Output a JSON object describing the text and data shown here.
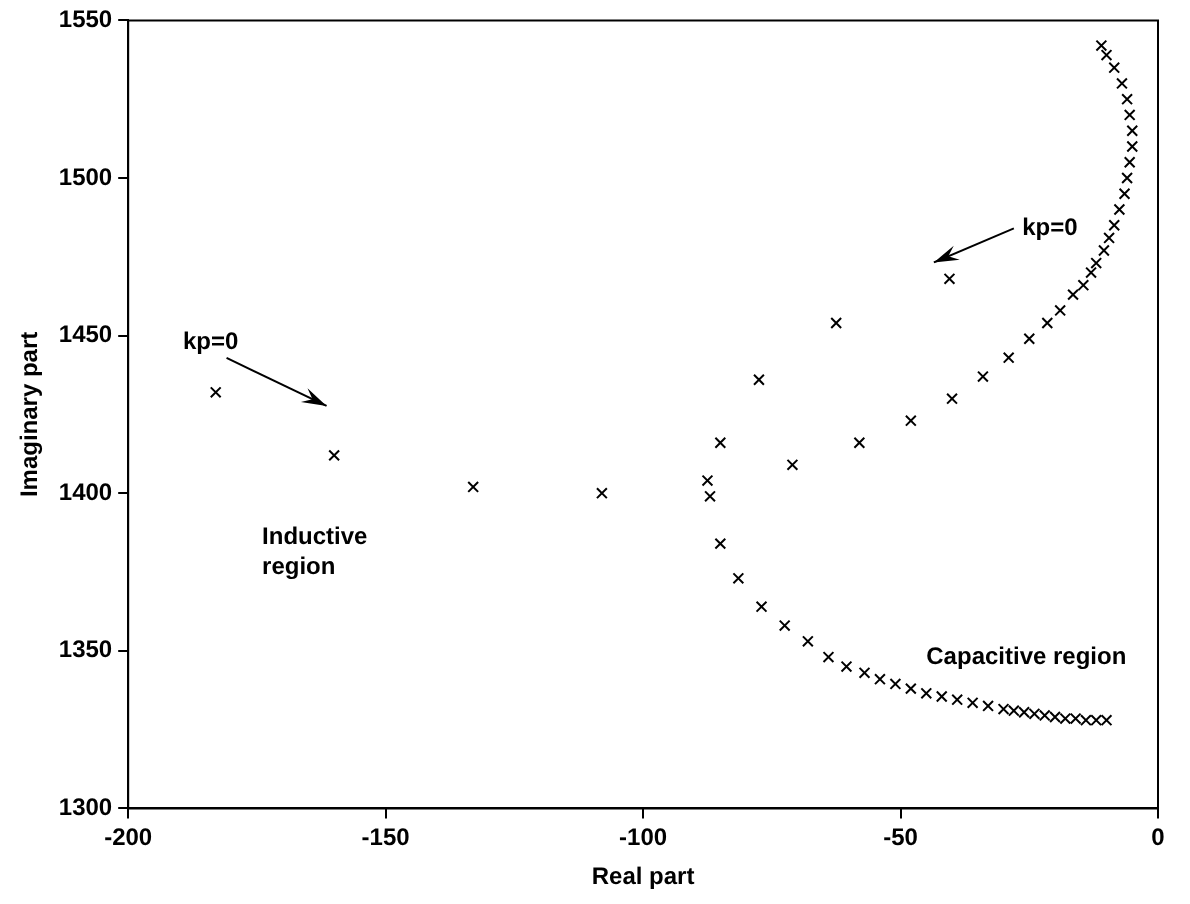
{
  "chart_data": {
    "type": "scatter",
    "xlabel": "Real part",
    "ylabel": "Imaginary part",
    "xlim": [
      -200,
      0
    ],
    "xticks": [
      -200,
      -150,
      -100,
      -50,
      0
    ],
    "ylim": [
      1300,
      1550
    ],
    "yticks": [
      1300,
      1350,
      1400,
      1450,
      1500,
      1550
    ],
    "grid": false,
    "legend": false,
    "marker": "cross",
    "annotations": [
      "kp=0",
      "kp=0",
      "Inductive region",
      "Capacitive region"
    ],
    "series": [
      {
        "color": "#000000",
        "x": [
          -183,
          -160,
          -133,
          -108,
          -87,
          -85,
          -81.5,
          -77,
          -72.5,
          -68,
          -64,
          -60.5,
          -57,
          -54,
          -51,
          -48,
          -45,
          -42,
          -39,
          -36,
          -33,
          -30,
          -28,
          -26,
          -24,
          -22,
          -20,
          -18,
          -16,
          -14,
          -12,
          -10
        ],
        "values": [
          1432,
          1412,
          1402,
          1400,
          1399,
          1384,
          1373,
          1364,
          1358,
          1353,
          1348,
          1345,
          1343,
          1341,
          1339.5,
          1338,
          1336.5,
          1335.5,
          1334.5,
          1333.5,
          1332.5,
          1331.5,
          1331,
          1330.5,
          1330,
          1329.5,
          1329,
          1328.5,
          1328.5,
          1328,
          1328,
          1328
        ]
      },
      {
        "color": "#000000",
        "x": [
          -40.5,
          -62.5,
          -77.5,
          -85,
          -87.5,
          -71,
          -58,
          -48,
          -40,
          -34,
          -29,
          -25,
          -21.5,
          -19,
          -16.5,
          -14.5,
          -13,
          -12,
          -10.5,
          -9.5,
          -8.5,
          -7.5,
          -6.5,
          -6,
          -5.5,
          -5,
          -5,
          -5.5,
          -6,
          -7,
          -8.5,
          -10,
          -11
        ],
        "values": [
          1468,
          1454,
          1436,
          1416,
          1404,
          1409,
          1416,
          1423,
          1430,
          1437,
          1443,
          1449,
          1454,
          1458,
          1463,
          1466,
          1470,
          1473,
          1477,
          1481,
          1485,
          1490,
          1495,
          1500,
          1505,
          1510,
          1515,
          1520,
          1525,
          1530,
          1535,
          1539,
          1542
        ]
      }
    ]
  }
}
